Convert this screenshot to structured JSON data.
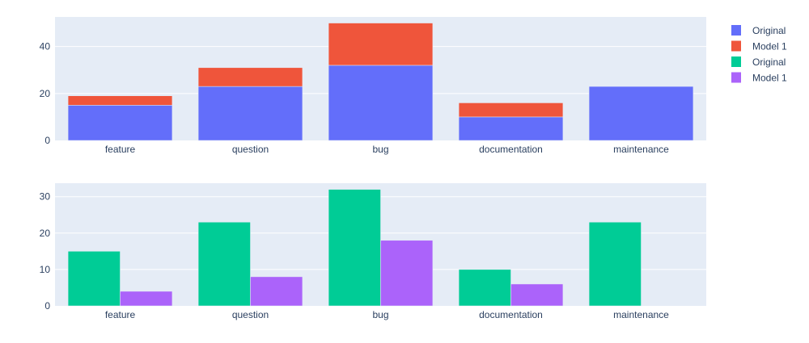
{
  "chart_data": [
    {
      "type": "bar",
      "barmode": "stack",
      "categories": [
        "feature",
        "question",
        "bug",
        "documentation",
        "maintenance"
      ],
      "series": [
        {
          "name": "Original",
          "values": [
            15,
            23,
            32,
            10,
            23
          ],
          "color": "#636efa"
        },
        {
          "name": "Model 1",
          "values": [
            4,
            8,
            18,
            6,
            0
          ],
          "color": "#ef553b"
        }
      ],
      "ylim": [
        0,
        52.6
      ],
      "yticks": [
        0,
        20,
        40
      ],
      "grid": true,
      "legend": "right"
    },
    {
      "type": "bar",
      "barmode": "group",
      "categories": [
        "feature",
        "question",
        "bug",
        "documentation",
        "maintenance"
      ],
      "series": [
        {
          "name": "Original",
          "values": [
            15,
            23,
            32,
            10,
            23
          ],
          "color": "#00cc96"
        },
        {
          "name": "Model 1",
          "values": [
            4,
            8,
            18,
            6,
            0
          ],
          "color": "#ab63fa"
        }
      ],
      "ylim": [
        0,
        33.7
      ],
      "yticks": [
        0,
        10,
        20,
        30
      ],
      "grid": true,
      "legend": "right"
    }
  ],
  "background": "#e5ecf6"
}
